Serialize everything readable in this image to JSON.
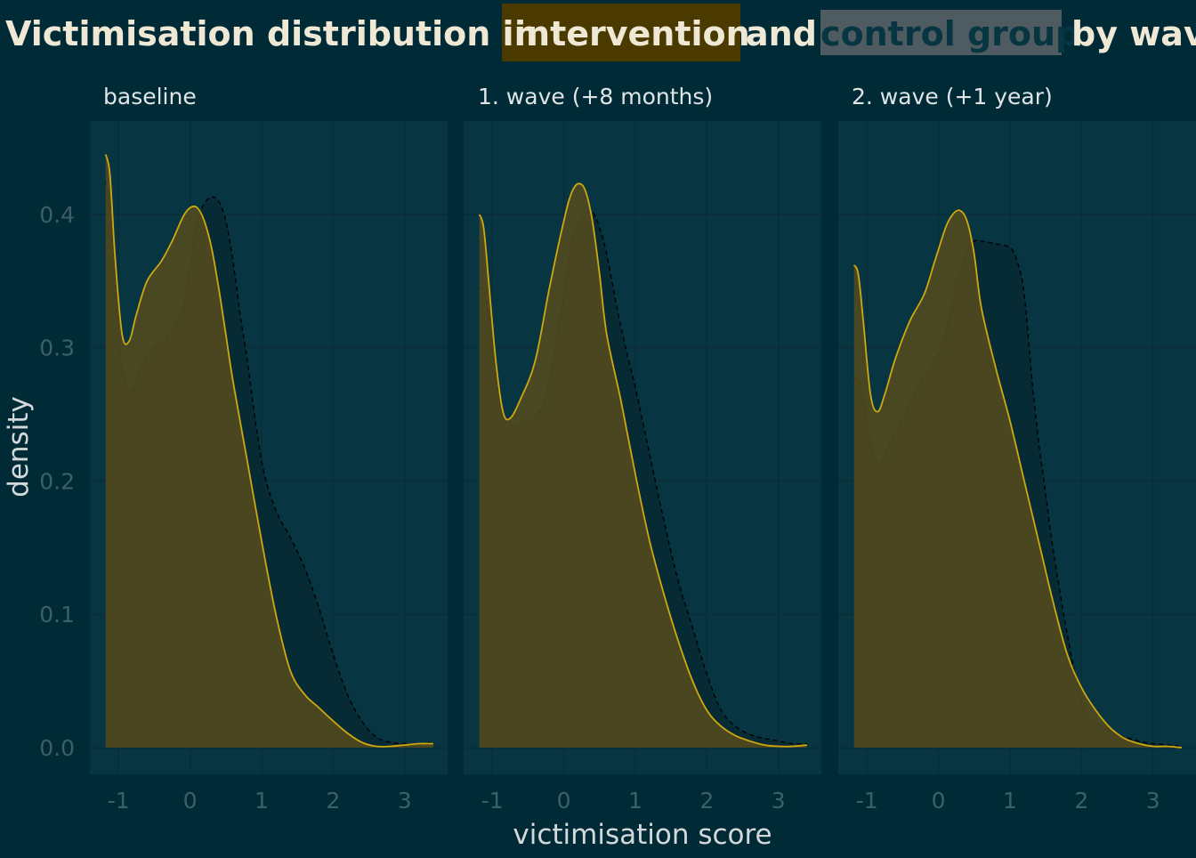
{
  "title": {
    "part1": "Victimisation distribution in",
    "highlight1": "intervention",
    "part2": "and",
    "highlight2": "control group",
    "part3": "by wave"
  },
  "colors": {
    "background": "#002b36",
    "panel": "#073642",
    "grid": "#0b2d38",
    "title_text": "#eee8d5",
    "tick_text": "#3d5f68",
    "axis_title": "#d3d8da",
    "strip_text": "#dfe4e6",
    "intervention": "#cfa70f",
    "intervention_fill": "#594d1b",
    "intervention_label_bg": "#4a3a00",
    "control_fill": "#062b35",
    "control_line": "#000000",
    "control_label_bg": "#4e5b61",
    "control_label_text": "#073642"
  },
  "chart_data": {
    "type": "area",
    "xlabel": "victimisation score",
    "ylabel": "density",
    "xlim": [
      -1.4,
      3.6
    ],
    "ylim": [
      -0.02,
      0.47
    ],
    "x_ticks": [
      -1,
      0,
      1,
      2,
      3
    ],
    "y_ticks": [
      0.0,
      0.1,
      0.2,
      0.3,
      0.4
    ],
    "x_tick_labels": [
      "-1",
      "0",
      "1",
      "2",
      "3"
    ],
    "y_tick_labels": [
      "0.0",
      "0.1",
      "0.2",
      "0.3",
      "0.4"
    ],
    "grid": true,
    "legend": "none (colour key in title)",
    "panels": [
      {
        "label": "baseline",
        "series": [
          {
            "group": "control",
            "points": [
              [
                -1.18,
                0.425
              ],
              [
                -1.1,
                0.395
              ],
              [
                -1.0,
                0.31
              ],
              [
                -0.9,
                0.272
              ],
              [
                -0.8,
                0.268
              ],
              [
                -0.7,
                0.282
              ],
              [
                -0.5,
                0.3
              ],
              [
                -0.3,
                0.31
              ],
              [
                -0.1,
                0.33
              ],
              [
                0.0,
                0.36
              ],
              [
                0.1,
                0.395
              ],
              [
                0.2,
                0.408
              ],
              [
                0.3,
                0.413
              ],
              [
                0.4,
                0.41
              ],
              [
                0.5,
                0.395
              ],
              [
                0.6,
                0.365
              ],
              [
                0.7,
                0.325
              ],
              [
                0.8,
                0.29
              ],
              [
                1.0,
                0.215
              ],
              [
                1.2,
                0.178
              ],
              [
                1.4,
                0.158
              ],
              [
                1.6,
                0.135
              ],
              [
                1.8,
                0.105
              ],
              [
                2.0,
                0.07
              ],
              [
                2.2,
                0.04
              ],
              [
                2.4,
                0.02
              ],
              [
                2.6,
                0.008
              ],
              [
                2.8,
                0.004
              ],
              [
                3.0,
                0.003
              ],
              [
                3.2,
                0.003
              ],
              [
                3.4,
                0.004
              ]
            ]
          },
          {
            "group": "intervention",
            "points": [
              [
                -1.18,
                0.445
              ],
              [
                -1.12,
                0.43
              ],
              [
                -1.05,
                0.37
              ],
              [
                -0.95,
                0.31
              ],
              [
                -0.85,
                0.305
              ],
              [
                -0.75,
                0.325
              ],
              [
                -0.6,
                0.35
              ],
              [
                -0.4,
                0.365
              ],
              [
                -0.25,
                0.38
              ],
              [
                -0.1,
                0.398
              ],
              [
                0.0,
                0.405
              ],
              [
                0.1,
                0.405
              ],
              [
                0.2,
                0.395
              ],
              [
                0.3,
                0.375
              ],
              [
                0.4,
                0.345
              ],
              [
                0.5,
                0.31
              ],
              [
                0.6,
                0.275
              ],
              [
                0.8,
                0.215
              ],
              [
                1.0,
                0.155
              ],
              [
                1.2,
                0.1
              ],
              [
                1.4,
                0.058
              ],
              [
                1.6,
                0.04
              ],
              [
                1.8,
                0.03
              ],
              [
                2.0,
                0.02
              ],
              [
                2.2,
                0.011
              ],
              [
                2.4,
                0.004
              ],
              [
                2.6,
                0.001
              ],
              [
                2.8,
                0.001
              ],
              [
                3.0,
                0.002
              ],
              [
                3.2,
                0.003
              ],
              [
                3.4,
                0.003
              ]
            ]
          }
        ]
      },
      {
        "label": "1. wave (+8 months)",
        "series": [
          {
            "group": "control",
            "points": [
              [
                -1.18,
                0.345
              ],
              [
                -1.1,
                0.34
              ],
              [
                -1.0,
                0.3
              ],
              [
                -0.9,
                0.258
              ],
              [
                -0.8,
                0.245
              ],
              [
                -0.7,
                0.242
              ],
              [
                -0.5,
                0.245
              ],
              [
                -0.3,
                0.255
              ],
              [
                -0.2,
                0.275
              ],
              [
                -0.1,
                0.305
              ],
              [
                0.0,
                0.34
              ],
              [
                0.1,
                0.375
              ],
              [
                0.2,
                0.393
              ],
              [
                0.3,
                0.4
              ],
              [
                0.4,
                0.402
              ],
              [
                0.5,
                0.39
              ],
              [
                0.6,
                0.37
              ],
              [
                0.8,
                0.315
              ],
              [
                1.0,
                0.27
              ],
              [
                1.2,
                0.22
              ],
              [
                1.4,
                0.17
              ],
              [
                1.6,
                0.125
              ],
              [
                1.8,
                0.09
              ],
              [
                2.0,
                0.055
              ],
              [
                2.2,
                0.028
              ],
              [
                2.4,
                0.016
              ],
              [
                2.6,
                0.01
              ],
              [
                2.8,
                0.007
              ],
              [
                3.0,
                0.005
              ],
              [
                3.2,
                0.003
              ],
              [
                3.4,
                0.003
              ]
            ]
          },
          {
            "group": "intervention",
            "points": [
              [
                -1.18,
                0.4
              ],
              [
                -1.12,
                0.39
              ],
              [
                -1.05,
                0.35
              ],
              [
                -0.95,
                0.29
              ],
              [
                -0.85,
                0.252
              ],
              [
                -0.75,
                0.247
              ],
              [
                -0.6,
                0.262
              ],
              [
                -0.4,
                0.29
              ],
              [
                -0.2,
                0.345
              ],
              [
                0.0,
                0.395
              ],
              [
                0.1,
                0.415
              ],
              [
                0.2,
                0.423
              ],
              [
                0.3,
                0.418
              ],
              [
                0.4,
                0.395
              ],
              [
                0.5,
                0.355
              ],
              [
                0.6,
                0.31
              ],
              [
                0.8,
                0.26
              ],
              [
                1.0,
                0.205
              ],
              [
                1.2,
                0.155
              ],
              [
                1.4,
                0.115
              ],
              [
                1.6,
                0.08
              ],
              [
                1.8,
                0.05
              ],
              [
                2.0,
                0.028
              ],
              [
                2.2,
                0.016
              ],
              [
                2.4,
                0.009
              ],
              [
                2.6,
                0.005
              ],
              [
                2.8,
                0.002
              ],
              [
                3.0,
                0.001
              ],
              [
                3.2,
                0.001
              ],
              [
                3.4,
                0.002
              ]
            ]
          }
        ]
      },
      {
        "label": "2. wave (+1 year)",
        "series": [
          {
            "group": "control",
            "points": [
              [
                -1.18,
                0.277
              ],
              [
                -1.1,
                0.275
              ],
              [
                -1.0,
                0.245
              ],
              [
                -0.9,
                0.217
              ],
              [
                -0.8,
                0.215
              ],
              [
                -0.7,
                0.225
              ],
              [
                -0.5,
                0.245
              ],
              [
                -0.3,
                0.268
              ],
              [
                -0.1,
                0.285
              ],
              [
                0.0,
                0.295
              ],
              [
                0.1,
                0.31
              ],
              [
                0.2,
                0.335
              ],
              [
                0.3,
                0.355
              ],
              [
                0.4,
                0.372
              ],
              [
                0.5,
                0.38
              ],
              [
                0.6,
                0.38
              ],
              [
                0.8,
                0.378
              ],
              [
                1.0,
                0.375
              ],
              [
                1.1,
                0.365
              ],
              [
                1.2,
                0.34
              ],
              [
                1.3,
                0.28
              ],
              [
                1.4,
                0.23
              ],
              [
                1.5,
                0.19
              ],
              [
                1.6,
                0.15
              ],
              [
                1.8,
                0.085
              ],
              [
                2.0,
                0.035
              ],
              [
                2.2,
                0.02
              ],
              [
                2.4,
                0.012
              ],
              [
                2.6,
                0.008
              ],
              [
                2.8,
                0.005
              ],
              [
                3.0,
                0.003
              ],
              [
                3.2,
                0.002
              ],
              [
                3.4,
                0.001
              ]
            ]
          },
          {
            "group": "intervention",
            "points": [
              [
                -1.18,
                0.362
              ],
              [
                -1.12,
                0.355
              ],
              [
                -1.05,
                0.32
              ],
              [
                -0.95,
                0.265
              ],
              [
                -0.85,
                0.252
              ],
              [
                -0.75,
                0.265
              ],
              [
                -0.6,
                0.292
              ],
              [
                -0.4,
                0.32
              ],
              [
                -0.2,
                0.34
              ],
              [
                -0.05,
                0.365
              ],
              [
                0.1,
                0.39
              ],
              [
                0.2,
                0.4
              ],
              [
                0.3,
                0.403
              ],
              [
                0.4,
                0.395
              ],
              [
                0.5,
                0.37
              ],
              [
                0.6,
                0.33
              ],
              [
                0.8,
                0.285
              ],
              [
                1.0,
                0.245
              ],
              [
                1.2,
                0.2
              ],
              [
                1.4,
                0.155
              ],
              [
                1.6,
                0.11
              ],
              [
                1.8,
                0.07
              ],
              [
                2.0,
                0.045
              ],
              [
                2.2,
                0.028
              ],
              [
                2.4,
                0.015
              ],
              [
                2.6,
                0.007
              ],
              [
                2.8,
                0.003
              ],
              [
                3.0,
                0.001
              ],
              [
                3.2,
                0.001
              ],
              [
                3.4,
                0.0
              ]
            ]
          }
        ]
      }
    ]
  }
}
